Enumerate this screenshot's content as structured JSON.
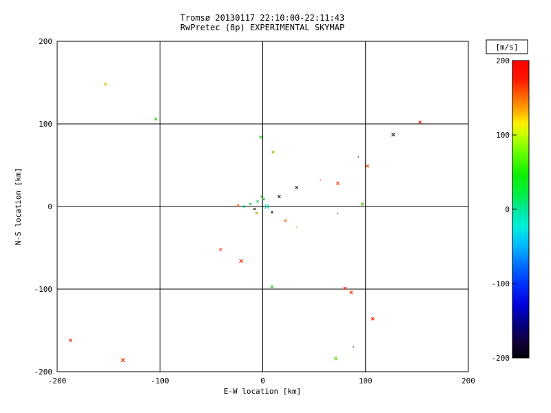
{
  "chart_data": {
    "type": "scatter",
    "title": "Tromsø 20130117 22:10:00-22:11:43",
    "subtitle": "RwPretec (8p) EXPERIMENTAL SKYMAP",
    "xlabel": "E-W location [km]",
    "ylabel": "N-S location [km]",
    "xlim": [
      -200,
      200
    ],
    "ylim": [
      -200,
      200
    ],
    "xticks": [
      -200,
      -100,
      0,
      100,
      200
    ],
    "yticks": [
      -200,
      -100,
      0,
      100,
      200
    ],
    "grid": true,
    "legend": "none",
    "colorbar": {
      "label": "[m/s]",
      "range": [
        -200,
        200
      ],
      "ticks": [
        200,
        100,
        0,
        -100,
        -200
      ],
      "gradient": [
        {
          "offset": 0.0,
          "color": "#ff0000"
        },
        {
          "offset": 0.06,
          "color": "#ff1500"
        },
        {
          "offset": 0.12,
          "color": "#ff6600"
        },
        {
          "offset": 0.17,
          "color": "#ffaa00"
        },
        {
          "offset": 0.21,
          "color": "#ffee00"
        },
        {
          "offset": 0.25,
          "color": "#c8ff00"
        },
        {
          "offset": 0.31,
          "color": "#66ff00"
        },
        {
          "offset": 0.38,
          "color": "#11ee00"
        },
        {
          "offset": 0.45,
          "color": "#00ee44"
        },
        {
          "offset": 0.5,
          "color": "#00e89a"
        },
        {
          "offset": 0.56,
          "color": "#00eedd"
        },
        {
          "offset": 0.62,
          "color": "#00bbff"
        },
        {
          "offset": 0.68,
          "color": "#0077ff"
        },
        {
          "offset": 0.75,
          "color": "#0033ff"
        },
        {
          "offset": 0.82,
          "color": "#0000dd"
        },
        {
          "offset": 0.88,
          "color": "#000088"
        },
        {
          "offset": 0.94,
          "color": "#110044"
        },
        {
          "offset": 1.0,
          "color": "#000000"
        }
      ]
    },
    "points": [
      {
        "x": -153,
        "y": 148,
        "color": "#d4c832",
        "marker": "x",
        "size": 5
      },
      {
        "x": -104,
        "y": 106,
        "color": "#44cc22",
        "marker": "x",
        "size": 4
      },
      {
        "x": 153,
        "y": 102,
        "color": "#ff2200",
        "marker": "x",
        "size": 4
      },
      {
        "x": 127,
        "y": 87,
        "color": "#222222",
        "marker": "x",
        "size": 5
      },
      {
        "x": -2,
        "y": 84,
        "color": "#33cc44",
        "marker": "x",
        "size": 4
      },
      {
        "x": 10,
        "y": 66,
        "color": "#99cc22",
        "marker": "x",
        "size": 4
      },
      {
        "x": 93,
        "y": 60,
        "color": "#552222",
        "marker": "dot",
        "size": 3
      },
      {
        "x": 102,
        "y": 49,
        "color": "#ff4400",
        "marker": "x",
        "size": 4
      },
      {
        "x": 56,
        "y": 32,
        "color": "#ff2200",
        "marker": "dot",
        "size": 3
      },
      {
        "x": 73,
        "y": 28,
        "color": "#ff3300",
        "marker": "x",
        "size": 4
      },
      {
        "x": 33,
        "y": 23,
        "color": "#222222",
        "marker": "x",
        "size": 4
      },
      {
        "x": 16,
        "y": 12,
        "color": "#222222",
        "marker": "x",
        "size": 4
      },
      {
        "x": -1,
        "y": 12,
        "color": "#33bb33",
        "marker": "x",
        "size": 3
      },
      {
        "x": -24,
        "y": 1,
        "color": "#ff5500",
        "marker": "x",
        "size": 3
      },
      {
        "x": -18,
        "y": 0,
        "color": "#00ccaa",
        "marker": "x",
        "size": 3
      },
      {
        "x": -12,
        "y": 3,
        "color": "#33cc55",
        "marker": "x",
        "size": 3
      },
      {
        "x": -8,
        "y": -3,
        "color": "#333333",
        "marker": "x",
        "size": 3
      },
      {
        "x": -6,
        "y": -8,
        "color": "#ccaa00",
        "marker": "x",
        "size": 3
      },
      {
        "x": -5,
        "y": 6,
        "color": "#22cc66",
        "marker": "x",
        "size": 3
      },
      {
        "x": 1,
        "y": 9,
        "color": "#33bb44",
        "marker": "x",
        "size": 3
      },
      {
        "x": 4,
        "y": 0,
        "color": "#00ddcc",
        "marker": "x",
        "size": 6
      },
      {
        "x": 9,
        "y": -7,
        "color": "#223322",
        "marker": "x",
        "size": 3
      },
      {
        "x": 22,
        "y": -17,
        "color": "#ff6600",
        "marker": "x",
        "size": 3
      },
      {
        "x": 73,
        "y": -8,
        "color": "#222222",
        "marker": "dot",
        "size": 3
      },
      {
        "x": 97,
        "y": 3,
        "color": "#55cc22",
        "marker": "x",
        "size": 4
      },
      {
        "x": 33,
        "y": -25,
        "color": "#ccbb22",
        "marker": "dot",
        "size": 3
      },
      {
        "x": -41,
        "y": -52,
        "color": "#ff5522",
        "marker": "x",
        "size": 4
      },
      {
        "x": -21,
        "y": -66,
        "color": "#ff2200",
        "marker": "x",
        "size": 5
      },
      {
        "x": 9,
        "y": -97,
        "color": "#33cc33",
        "marker": "x",
        "size": 4
      },
      {
        "x": 80,
        "y": -99,
        "color": "#ff2200",
        "marker": "x",
        "size": 4
      },
      {
        "x": 86,
        "y": -104,
        "color": "#ff3300",
        "marker": "x",
        "size": 4
      },
      {
        "x": 107,
        "y": -136,
        "color": "#ff2200",
        "marker": "x",
        "size": 4
      },
      {
        "x": -187,
        "y": -162,
        "color": "#ff2200",
        "marker": "x",
        "size": 4
      },
      {
        "x": -136,
        "y": -186,
        "color": "#ff2200",
        "marker": "x",
        "size": 5
      },
      {
        "x": 71,
        "y": -184,
        "color": "#88cc22",
        "marker": "x",
        "size": 5
      },
      {
        "x": 88,
        "y": -170,
        "color": "#222222",
        "marker": "dot",
        "size": 3
      }
    ]
  }
}
